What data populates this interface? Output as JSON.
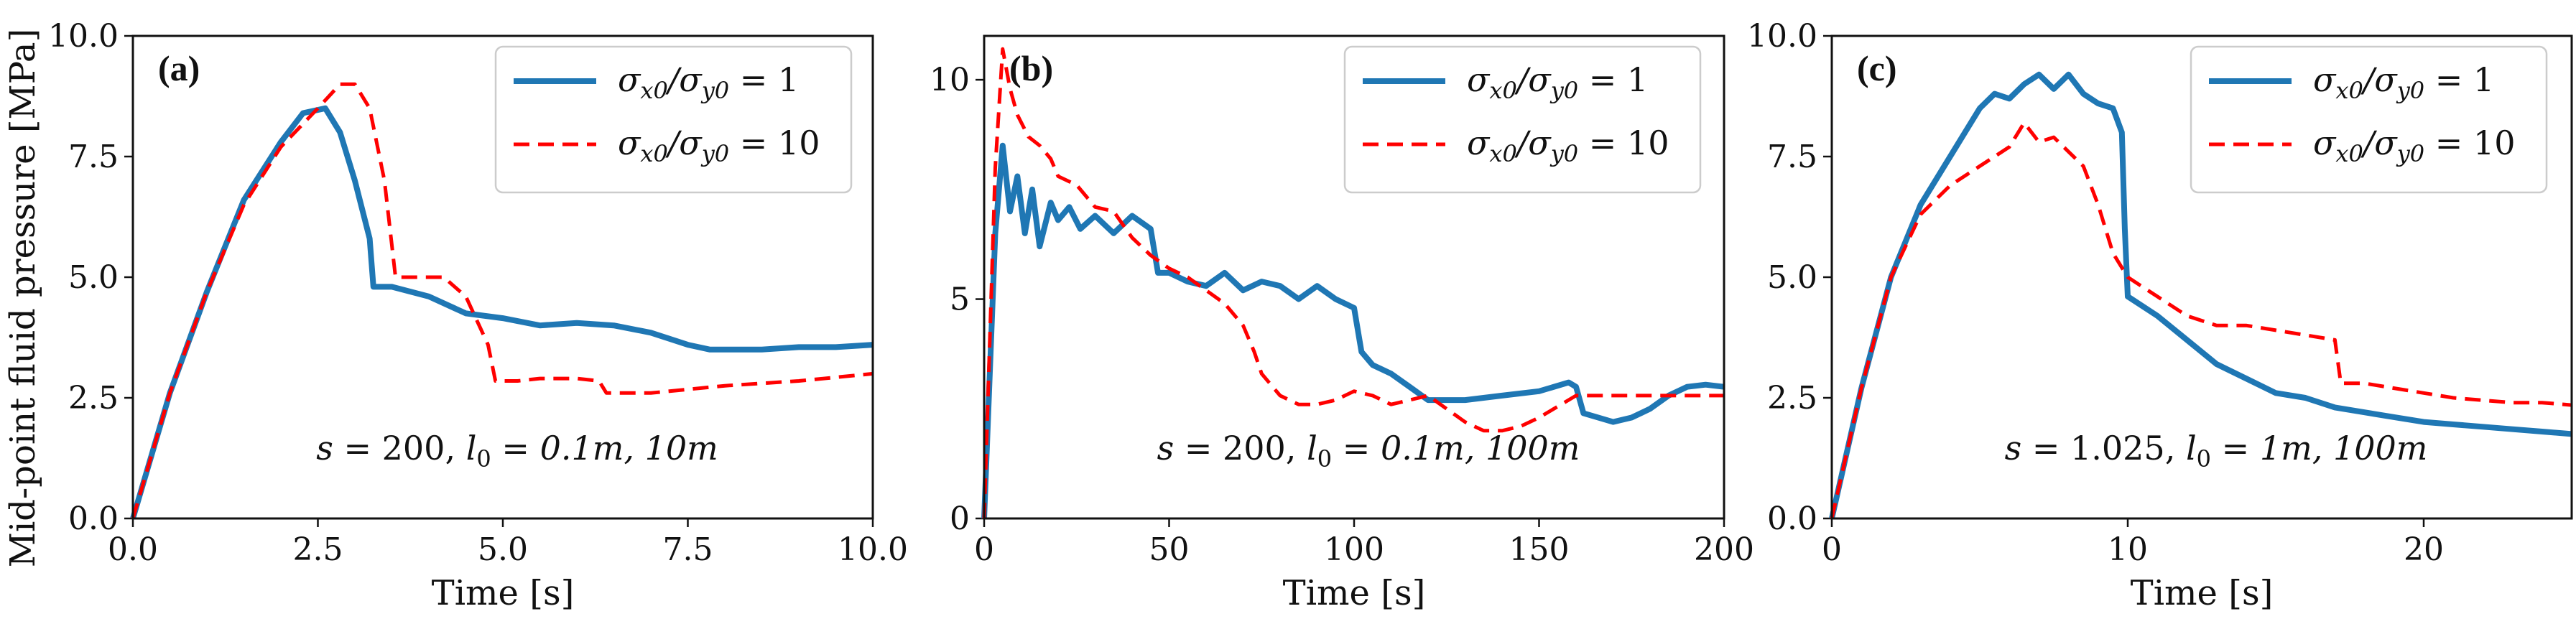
{
  "chart_data": [
    {
      "type": "line",
      "panel_label": "(a)",
      "ylabel": "Mid-point fluid pressure [MPa]",
      "xlabel": "Time [s]",
      "xlim": [
        0,
        10
      ],
      "ylim": [
        0,
        10
      ],
      "xticks": [
        "0.0",
        "2.5",
        "5.0",
        "7.5",
        "10.0"
      ],
      "yticks": [
        "0.0",
        "2.5",
        "5.0",
        "7.5",
        "10.0"
      ],
      "annotation": "s = 200, l0 = 0.1m, 10m",
      "legend": [
        "σx0/σy0 = 1",
        "σx0/σy0 = 10"
      ],
      "legend_position": "top-right",
      "series": [
        {
          "name": "σx0/σy0 = 1",
          "color": "#1f77b4",
          "style": "solid",
          "x": [
            0,
            0.5,
            1.0,
            1.5,
            2.0,
            2.3,
            2.6,
            2.8,
            3.0,
            3.2,
            3.25,
            3.5,
            4.0,
            4.5,
            5.0,
            5.5,
            6.0,
            6.5,
            7.0,
            7.5,
            7.8,
            8.5,
            9.0,
            9.5,
            10.0
          ],
          "y": [
            0,
            2.6,
            4.7,
            6.6,
            7.8,
            8.4,
            8.5,
            8.0,
            7.0,
            5.8,
            4.8,
            4.8,
            4.6,
            4.25,
            4.15,
            4.0,
            4.05,
            4.0,
            3.85,
            3.6,
            3.5,
            3.5,
            3.55,
            3.55,
            3.6
          ]
        },
        {
          "name": "σx0/σy0 = 10",
          "color": "#ff0000",
          "style": "dashed",
          "x": [
            0,
            0.5,
            1.0,
            1.5,
            2.0,
            2.5,
            2.8,
            3.0,
            3.2,
            3.4,
            3.55,
            3.8,
            4.2,
            4.5,
            4.8,
            4.9,
            5.2,
            5.5,
            6.0,
            6.3,
            6.4,
            7.0,
            8.0,
            9.0,
            10.0
          ],
          "y": [
            0,
            2.6,
            4.7,
            6.5,
            7.7,
            8.5,
            9.0,
            9.0,
            8.5,
            7.0,
            5.0,
            5.0,
            5.0,
            4.6,
            3.6,
            2.85,
            2.85,
            2.9,
            2.9,
            2.85,
            2.6,
            2.6,
            2.75,
            2.85,
            3.0
          ]
        }
      ]
    },
    {
      "type": "line",
      "panel_label": "(b)",
      "ylabel": "",
      "xlabel": "Time [s]",
      "xlim": [
        0,
        200
      ],
      "ylim": [
        0,
        11
      ],
      "xticks": [
        "0",
        "50",
        "100",
        "150",
        "200"
      ],
      "yticks": [
        "0",
        "5",
        "10"
      ],
      "ytick_values": [
        0,
        5,
        10
      ],
      "annotation": "s = 200, l0 = 0.1m, 100m",
      "legend": [
        "σx0/σy0 = 1",
        "σx0/σy0 = 10"
      ],
      "legend_position": "top-right",
      "series": [
        {
          "name": "σx0/σy0 = 1",
          "color": "#1f77b4",
          "style": "solid",
          "x": [
            0,
            3,
            5,
            7,
            9,
            11,
            13,
            15,
            18,
            20,
            23,
            26,
            30,
            35,
            40,
            45,
            47,
            50,
            55,
            60,
            65,
            70,
            75,
            80,
            85,
            90,
            95,
            100,
            102,
            105,
            110,
            115,
            120,
            130,
            140,
            150,
            158,
            160,
            162,
            170,
            175,
            180,
            185,
            190,
            195,
            200
          ],
          "y": [
            0,
            6.5,
            8.5,
            7.0,
            7.8,
            6.5,
            7.5,
            6.2,
            7.2,
            6.8,
            7.1,
            6.6,
            6.9,
            6.5,
            6.9,
            6.6,
            5.6,
            5.6,
            5.4,
            5.3,
            5.6,
            5.2,
            5.4,
            5.3,
            5.0,
            5.3,
            5.0,
            4.8,
            3.8,
            3.5,
            3.3,
            3.0,
            2.7,
            2.7,
            2.8,
            2.9,
            3.1,
            3.0,
            2.4,
            2.2,
            2.3,
            2.5,
            2.8,
            3.0,
            3.05,
            3.0
          ]
        },
        {
          "name": "σx0/σy0 = 10",
          "color": "#ff0000",
          "style": "dashed",
          "x": [
            0,
            3,
            5,
            7,
            9,
            12,
            15,
            18,
            20,
            25,
            30,
            35,
            40,
            45,
            50,
            55,
            60,
            65,
            70,
            73,
            75,
            80,
            85,
            90,
            95,
            100,
            105,
            110,
            115,
            120,
            125,
            130,
            135,
            140,
            145,
            150,
            160,
            170,
            180,
            190,
            200
          ],
          "y": [
            0,
            8.0,
            10.7,
            9.8,
            9.2,
            8.7,
            8.5,
            8.2,
            7.8,
            7.6,
            7.1,
            7.0,
            6.4,
            6.0,
            5.7,
            5.5,
            5.2,
            4.9,
            4.4,
            3.8,
            3.3,
            2.8,
            2.6,
            2.6,
            2.7,
            2.9,
            2.8,
            2.6,
            2.7,
            2.8,
            2.5,
            2.2,
            2.0,
            2.0,
            2.1,
            2.3,
            2.8,
            2.8,
            2.8,
            2.8,
            2.8
          ]
        }
      ]
    },
    {
      "type": "line",
      "panel_label": "(c)",
      "ylabel": "",
      "xlabel": "Time [s]",
      "xlim": [
        0,
        25
      ],
      "ylim": [
        0,
        10
      ],
      "xticks": [
        "0",
        "10",
        "20"
      ],
      "xtick_values": [
        0,
        10,
        20
      ],
      "yticks": [
        "0.0",
        "2.5",
        "5.0",
        "7.5",
        "10.0"
      ],
      "annotation": "s = 1.025, l0 = 1m, 100m",
      "legend": [
        "σx0/σy0 = 1",
        "σx0/σy0 = 10"
      ],
      "legend_position": "top-right",
      "series": [
        {
          "name": "σx0/σy0 = 1",
          "color": "#1f77b4",
          "style": "solid",
          "x": [
            0,
            1,
            2,
            3,
            4,
            5,
            5.5,
            6,
            6.5,
            7,
            7.5,
            8,
            8.5,
            9,
            9.5,
            9.8,
            9.9,
            10,
            11,
            12,
            13,
            14,
            15,
            16,
            17,
            18,
            19,
            20,
            21,
            22,
            23,
            24,
            25
          ],
          "y": [
            0,
            2.7,
            5.0,
            6.5,
            7.5,
            8.5,
            8.8,
            8.7,
            9.0,
            9.2,
            8.9,
            9.2,
            8.8,
            8.6,
            8.5,
            8.0,
            6.0,
            4.6,
            4.2,
            3.7,
            3.2,
            2.9,
            2.6,
            2.5,
            2.3,
            2.2,
            2.1,
            2.0,
            1.95,
            1.9,
            1.85,
            1.8,
            1.75
          ]
        },
        {
          "name": "σx0/σy0 = 10",
          "color": "#ff0000",
          "style": "dashed",
          "x": [
            0,
            1,
            2,
            3,
            4,
            5,
            6,
            6.5,
            7,
            7.5,
            8,
            8.5,
            9,
            9.5,
            10,
            11,
            12,
            13,
            14,
            15,
            16,
            17,
            17.2,
            18,
            19,
            20,
            21,
            22,
            23,
            24,
            25
          ],
          "y": [
            0,
            2.7,
            5.0,
            6.3,
            6.9,
            7.3,
            7.7,
            8.2,
            7.8,
            7.9,
            7.6,
            7.3,
            6.5,
            5.5,
            5.0,
            4.6,
            4.2,
            4.0,
            4.0,
            3.9,
            3.8,
            3.7,
            2.8,
            2.8,
            2.7,
            2.6,
            2.5,
            2.45,
            2.4,
            2.4,
            2.35
          ]
        }
      ]
    }
  ]
}
